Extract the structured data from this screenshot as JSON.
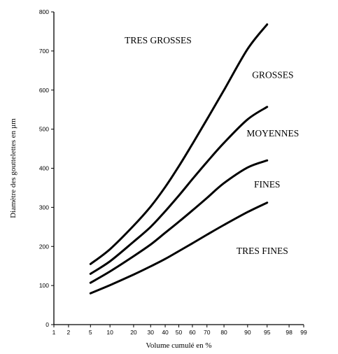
{
  "chart_data": {
    "type": "line",
    "title": "",
    "xlabel": "Volume cumulé en %",
    "ylabel": "Diamètre des gouttelettes en µm",
    "x_scale": "probability",
    "xlim": [
      1,
      99
    ],
    "ylim": [
      0,
      800
    ],
    "x_ticks": [
      1,
      2,
      5,
      10,
      20,
      30,
      40,
      50,
      60,
      70,
      80,
      90,
      95,
      98,
      99
    ],
    "y_ticks": [
      0,
      100,
      200,
      300,
      400,
      500,
      600,
      700,
      800
    ],
    "grid": false,
    "legend": "none",
    "series": [
      {
        "x": [
          5,
          10,
          20,
          30,
          40,
          50,
          60,
          70,
          80,
          90,
          95
        ],
        "values": [
          80,
          101,
          128,
          149,
          168,
          188,
          208,
          230,
          255,
          288,
          312
        ]
      },
      {
        "x": [
          5,
          10,
          20,
          30,
          40,
          50,
          60,
          70,
          80,
          90,
          95
        ],
        "values": [
          107,
          136,
          175,
          205,
          235,
          263,
          292,
          324,
          362,
          402,
          420
        ]
      },
      {
        "x": [
          5,
          10,
          20,
          30,
          40,
          50,
          60,
          70,
          80,
          90,
          95
        ],
        "values": [
          130,
          162,
          212,
          250,
          290,
          330,
          372,
          416,
          465,
          525,
          557
        ]
      },
      {
        "x": [
          5,
          10,
          20,
          30,
          40,
          50,
          60,
          70,
          80,
          90,
          95
        ],
        "values": [
          155,
          193,
          253,
          302,
          352,
          405,
          462,
          525,
          600,
          705,
          768
        ]
      }
    ],
    "annotations": [
      {
        "text": "TRES GROSSES",
        "x": 35,
        "y": 728
      },
      {
        "text": "GROSSES",
        "x": 96,
        "y": 640
      },
      {
        "text": "MOYENNES",
        "x": 96,
        "y": 490
      },
      {
        "text": "FINES",
        "x": 95,
        "y": 360
      },
      {
        "text": "TRES FINES",
        "x": 94,
        "y": 190
      }
    ]
  }
}
